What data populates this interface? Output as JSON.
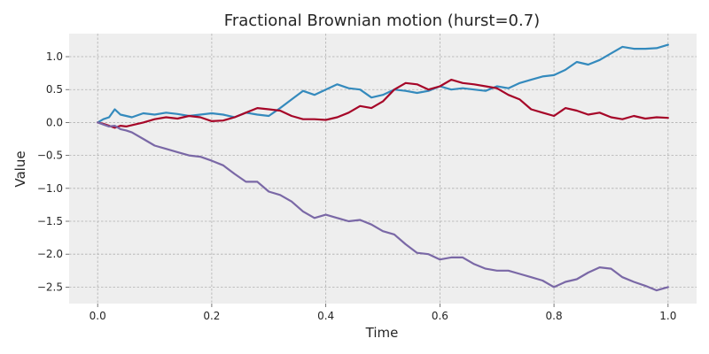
{
  "chart_data": {
    "type": "line",
    "title": "Fractional Brownian motion (hurst=0.7)",
    "xlabel": "Time",
    "ylabel": "Value",
    "xlim": [
      -0.05,
      1.05
    ],
    "ylim": [
      -2.75,
      1.35
    ],
    "xticks": [
      0.0,
      0.2,
      0.4,
      0.6,
      0.8,
      1.0
    ],
    "xtick_labels": [
      "0.0",
      "0.2",
      "0.4",
      "0.6",
      "0.8",
      "1.0"
    ],
    "yticks": [
      1.0,
      0.5,
      0.0,
      -0.5,
      -1.0,
      -1.5,
      -2.0,
      -2.5
    ],
    "ytick_labels": [
      "1.0",
      "0.5",
      "0.0",
      "−0.5",
      "−1.0",
      "−1.5",
      "−2.0",
      "−2.5"
    ],
    "grid": true,
    "colors": {
      "background": "#eeeeee",
      "blue": "#348abd",
      "red": "#a60628",
      "purple": "#7a68a6"
    },
    "series": [
      {
        "color": "#348abd",
        "x": [
          0.0,
          0.01,
          0.02,
          0.03,
          0.04,
          0.05,
          0.06,
          0.08,
          0.1,
          0.12,
          0.14,
          0.16,
          0.18,
          0.2,
          0.22,
          0.24,
          0.26,
          0.28,
          0.3,
          0.32,
          0.34,
          0.36,
          0.38,
          0.4,
          0.42,
          0.44,
          0.46,
          0.48,
          0.5,
          0.52,
          0.54,
          0.56,
          0.58,
          0.6,
          0.62,
          0.64,
          0.66,
          0.68,
          0.7,
          0.72,
          0.74,
          0.76,
          0.78,
          0.8,
          0.82,
          0.84,
          0.86,
          0.88,
          0.9,
          0.92,
          0.94,
          0.96,
          0.98,
          1.0
        ],
        "y": [
          0.0,
          0.05,
          0.08,
          0.2,
          0.12,
          0.1,
          0.08,
          0.14,
          0.12,
          0.15,
          0.13,
          0.1,
          0.12,
          0.14,
          0.12,
          0.08,
          0.15,
          0.12,
          0.1,
          0.22,
          0.35,
          0.48,
          0.42,
          0.5,
          0.58,
          0.52,
          0.5,
          0.38,
          0.42,
          0.5,
          0.48,
          0.45,
          0.48,
          0.55,
          0.5,
          0.52,
          0.5,
          0.48,
          0.55,
          0.52,
          0.6,
          0.65,
          0.7,
          0.72,
          0.8,
          0.92,
          0.88,
          0.95,
          1.05,
          1.15,
          1.12,
          1.12,
          1.13,
          1.18
        ]
      },
      {
        "color": "#a60628",
        "x": [
          0.0,
          0.01,
          0.02,
          0.03,
          0.04,
          0.05,
          0.06,
          0.08,
          0.1,
          0.12,
          0.14,
          0.16,
          0.18,
          0.2,
          0.22,
          0.24,
          0.26,
          0.28,
          0.3,
          0.32,
          0.34,
          0.36,
          0.38,
          0.4,
          0.42,
          0.44,
          0.46,
          0.48,
          0.5,
          0.52,
          0.54,
          0.56,
          0.58,
          0.6,
          0.62,
          0.64,
          0.66,
          0.68,
          0.7,
          0.72,
          0.74,
          0.76,
          0.78,
          0.8,
          0.82,
          0.84,
          0.86,
          0.88,
          0.9,
          0.92,
          0.94,
          0.96,
          0.98,
          1.0
        ],
        "y": [
          0.0,
          -0.02,
          -0.05,
          -0.08,
          -0.05,
          -0.06,
          -0.04,
          0.0,
          0.05,
          0.08,
          0.06,
          0.1,
          0.08,
          0.02,
          0.03,
          0.08,
          0.15,
          0.22,
          0.2,
          0.18,
          0.1,
          0.05,
          0.05,
          0.04,
          0.08,
          0.15,
          0.25,
          0.22,
          0.32,
          0.5,
          0.6,
          0.58,
          0.5,
          0.55,
          0.65,
          0.6,
          0.58,
          0.55,
          0.52,
          0.42,
          0.35,
          0.2,
          0.15,
          0.1,
          0.22,
          0.18,
          0.12,
          0.15,
          0.08,
          0.05,
          0.1,
          0.06,
          0.08,
          0.07
        ]
      },
      {
        "color": "#7a68a6",
        "x": [
          0.0,
          0.01,
          0.02,
          0.03,
          0.04,
          0.05,
          0.06,
          0.08,
          0.1,
          0.12,
          0.14,
          0.16,
          0.18,
          0.2,
          0.22,
          0.24,
          0.26,
          0.28,
          0.3,
          0.32,
          0.34,
          0.36,
          0.38,
          0.4,
          0.42,
          0.44,
          0.46,
          0.48,
          0.5,
          0.52,
          0.54,
          0.56,
          0.58,
          0.6,
          0.62,
          0.64,
          0.66,
          0.68,
          0.7,
          0.72,
          0.74,
          0.76,
          0.78,
          0.8,
          0.82,
          0.84,
          0.86,
          0.88,
          0.9,
          0.92,
          0.94,
          0.96,
          0.98,
          1.0
        ],
        "y": [
          0.0,
          -0.03,
          -0.06,
          -0.05,
          -0.1,
          -0.12,
          -0.15,
          -0.25,
          -0.35,
          -0.4,
          -0.45,
          -0.5,
          -0.52,
          -0.58,
          -0.65,
          -0.78,
          -0.9,
          -0.9,
          -1.05,
          -1.1,
          -1.2,
          -1.35,
          -1.45,
          -1.4,
          -1.45,
          -1.5,
          -1.48,
          -1.55,
          -1.65,
          -1.7,
          -1.85,
          -1.98,
          -2.0,
          -2.08,
          -2.05,
          -2.05,
          -2.15,
          -2.22,
          -2.25,
          -2.25,
          -2.3,
          -2.35,
          -2.4,
          -2.5,
          -2.42,
          -2.38,
          -2.28,
          -2.2,
          -2.22,
          -2.35,
          -2.42,
          -2.48,
          -2.55,
          -2.5
        ]
      }
    ]
  }
}
